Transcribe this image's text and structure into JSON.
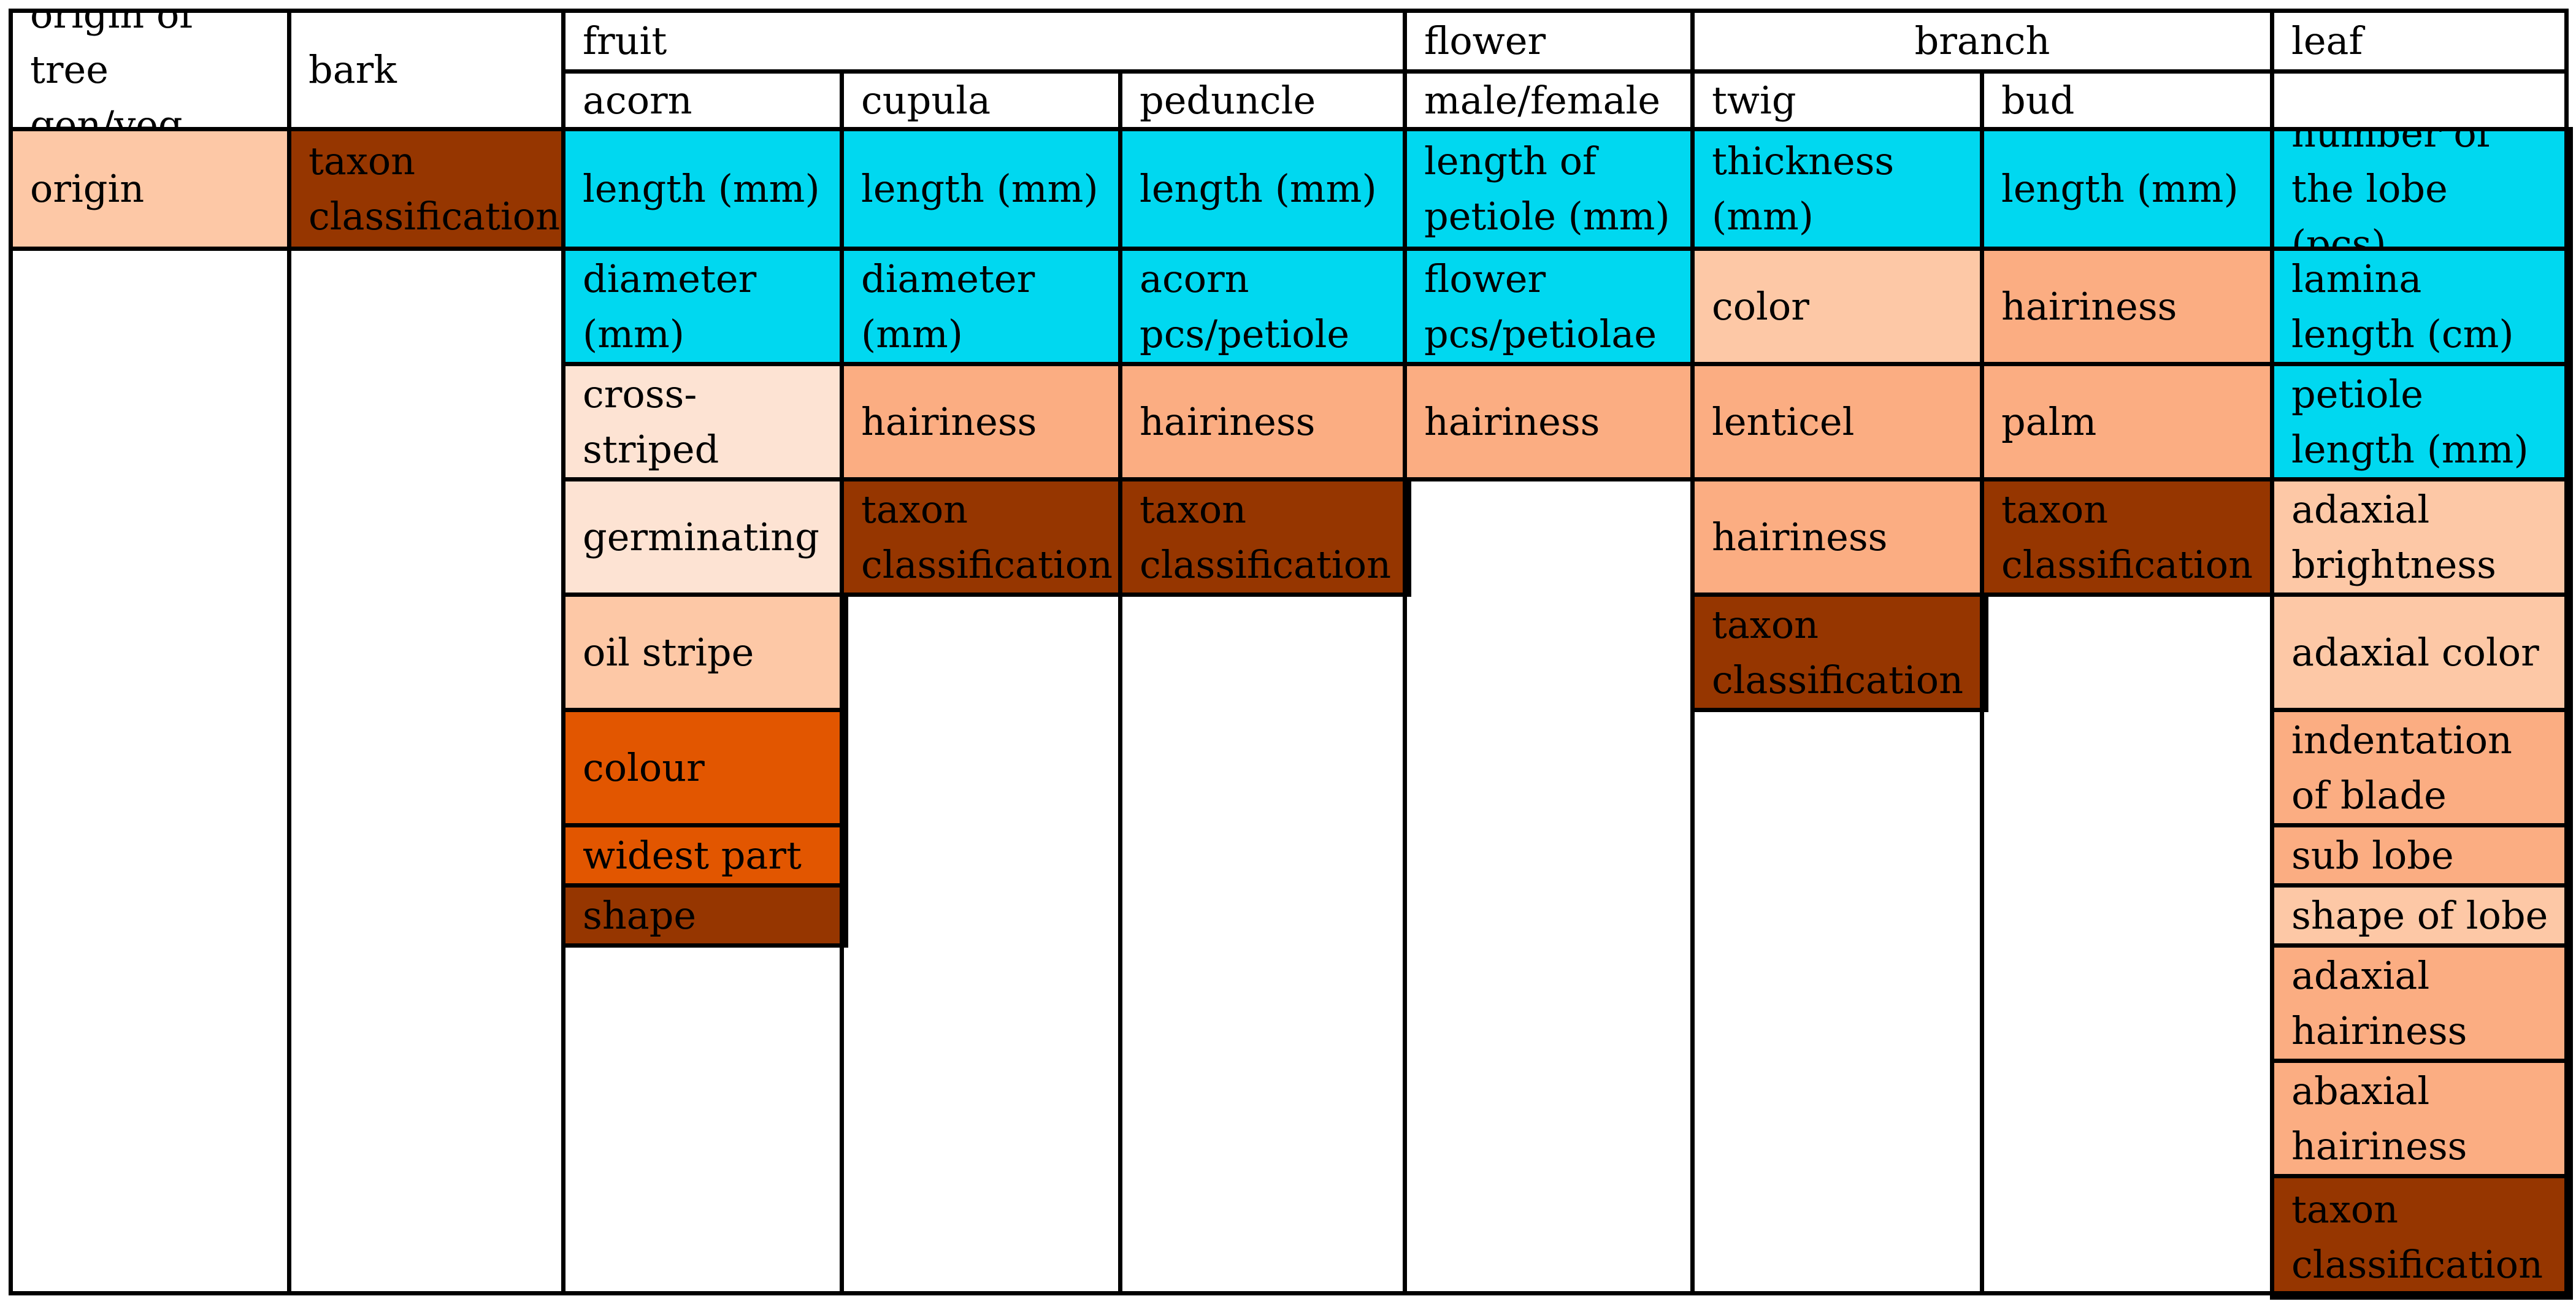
{
  "colors": {
    "peach": "#fdc8a6",
    "light_peach": "#fde3d3",
    "salmon": "#fbad82",
    "cyan": "#00d8f0",
    "orange": "#e25600",
    "brown": "#963600",
    "white": "#ffffff"
  },
  "headers": {
    "origin": "origin of tree gen/veg",
    "bark": "bark",
    "fruit": "fruit",
    "flower": "flower",
    "branch": "branch",
    "leaf": "leaf",
    "acorn": "acorn",
    "cupula": "cupula",
    "peduncle": "peduncle",
    "male_female": "male/female",
    "twig": "twig",
    "bud": "bud"
  },
  "columns": {
    "origin": [
      {
        "text": "origin",
        "color": "peach"
      }
    ],
    "bark": [
      {
        "text": "taxon classification",
        "color": "brown"
      }
    ],
    "acorn": [
      {
        "text": "length (mm)",
        "color": "cyan"
      },
      {
        "text": "diameter (mm)",
        "color": "cyan"
      },
      {
        "text": "cross-striped",
        "color": "light_peach"
      },
      {
        "text": "germinating",
        "color": "light_peach"
      },
      {
        "text": "oil stripe",
        "color": "peach"
      },
      {
        "text": "colour",
        "color": "orange"
      },
      {
        "text": "widest part",
        "color": "orange"
      },
      {
        "text": "shape",
        "color": "brown"
      }
    ],
    "cupula": [
      {
        "text": "length (mm)",
        "color": "cyan"
      },
      {
        "text": "diameter (mm)",
        "color": "cyan"
      },
      {
        "text": "hairiness",
        "color": "salmon"
      },
      {
        "text": "taxon classification",
        "color": "brown"
      }
    ],
    "peduncle": [
      {
        "text": "length (mm)",
        "color": "cyan"
      },
      {
        "text": "acorn pcs/petiole",
        "color": "cyan"
      },
      {
        "text": "hairiness",
        "color": "salmon"
      },
      {
        "text": "taxon classification",
        "color": "brown"
      }
    ],
    "flower": [
      {
        "text": "length of petiole (mm)",
        "color": "cyan"
      },
      {
        "text": "flower pcs/petiolae",
        "color": "cyan"
      },
      {
        "text": "hairiness",
        "color": "salmon"
      }
    ],
    "twig": [
      {
        "text": "thickness (mm)",
        "color": "cyan"
      },
      {
        "text": "color",
        "color": "peach"
      },
      {
        "text": "lenticel",
        "color": "salmon"
      },
      {
        "text": "hairiness",
        "color": "salmon"
      },
      {
        "text": "taxon classification",
        "color": "brown"
      }
    ],
    "bud": [
      {
        "text": "length (mm)",
        "color": "cyan"
      },
      {
        "text": "hairiness",
        "color": "salmon"
      },
      {
        "text": "palm",
        "color": "salmon"
      },
      {
        "text": "taxon classification",
        "color": "brown"
      }
    ],
    "leaf": [
      {
        "text": "number of the lobe (pcs)",
        "color": "cyan"
      },
      {
        "text": "lamina length (cm)",
        "color": "cyan"
      },
      {
        "text": "petiole length (mm)",
        "color": "cyan"
      },
      {
        "text": "adaxial brightness",
        "color": "peach"
      },
      {
        "text": "adaxial color",
        "color": "peach"
      },
      {
        "text": "indentation of blade",
        "color": "salmon"
      },
      {
        "text": "sub lobe",
        "color": "salmon"
      },
      {
        "text": "shape of lobe",
        "color": "peach"
      },
      {
        "text": "adaxial hairiness",
        "color": "salmon"
      },
      {
        "text": "abaxial hairiness",
        "color": "salmon"
      },
      {
        "text": "taxon classification",
        "color": "brown"
      }
    ]
  }
}
